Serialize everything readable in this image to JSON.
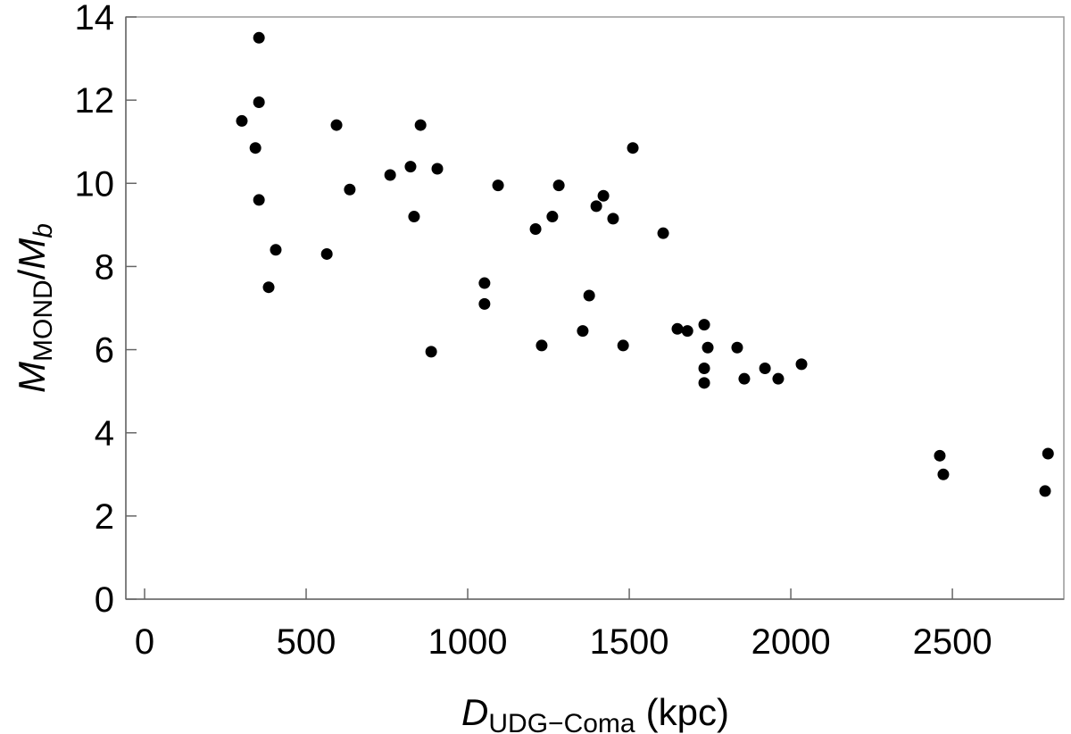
{
  "chart_data": {
    "type": "scatter",
    "xlabel": {
      "symbol": "D",
      "subscript": "UDG−Coma",
      "unit": "(kpc)"
    },
    "ylabel": {
      "numerator": "M",
      "numerator_subscript": "MOND",
      "slash": "/",
      "denominator": "M",
      "denominator_subscript": "b"
    },
    "color": "#000000",
    "x": [
      301,
      354,
      354,
      343,
      354,
      406,
      384,
      564,
      594,
      635,
      760,
      823,
      834,
      854,
      906,
      887,
      1052,
      1052,
      1094,
      1210,
      1229,
      1262,
      1282,
      1356,
      1376,
      1398,
      1420,
      1450,
      1481,
      1511,
      1605,
      1649,
      1680,
      1732,
      1743,
      1732,
      1732,
      1834,
      1856,
      1920,
      1961,
      2033,
      2461,
      2472,
      2796,
      2787
    ],
    "values": [
      11.5,
      13.5,
      11.95,
      10.85,
      9.6,
      8.4,
      7.5,
      8.3,
      11.4,
      9.85,
      10.2,
      10.4,
      9.2,
      11.4,
      10.35,
      5.95,
      7.6,
      7.1,
      9.95,
      8.9,
      6.1,
      9.2,
      9.95,
      6.45,
      7.3,
      9.45,
      9.7,
      9.15,
      6.1,
      10.85,
      8.8,
      6.5,
      6.45,
      6.6,
      6.05,
      5.55,
      5.2,
      6.05,
      5.3,
      5.55,
      5.3,
      5.65,
      3.45,
      3.0,
      3.5,
      2.6
    ],
    "xlim": [
      -58,
      2845
    ],
    "ylim": [
      0,
      14
    ],
    "xticks": [
      0,
      500,
      1000,
      1500,
      2000,
      2500
    ],
    "yticks": [
      0,
      2,
      4,
      6,
      8,
      10,
      12,
      14
    ]
  }
}
